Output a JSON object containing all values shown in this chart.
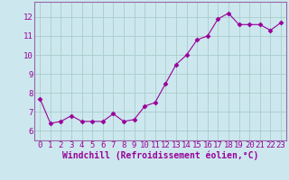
{
  "x": [
    0,
    1,
    2,
    3,
    4,
    5,
    6,
    7,
    8,
    9,
    10,
    11,
    12,
    13,
    14,
    15,
    16,
    17,
    18,
    19,
    20,
    21,
    22,
    23
  ],
  "y": [
    7.7,
    6.4,
    6.5,
    6.8,
    6.5,
    6.5,
    6.5,
    6.9,
    6.5,
    6.6,
    7.3,
    7.5,
    8.5,
    9.5,
    10.0,
    10.8,
    11.0,
    11.9,
    12.2,
    11.6,
    11.6,
    11.6,
    11.3,
    11.7
  ],
  "line_color": "#990099",
  "marker": "D",
  "marker_size": 2.5,
  "bg_color": "#cce8ee",
  "grid_color": "#aacccc",
  "xlabel": "Windchill (Refroidissement éolien,°C)",
  "xlabel_fontsize": 7,
  "tick_fontsize": 6.5,
  "ylim": [
    5.5,
    12.8
  ],
  "xlim": [
    -0.5,
    23.5
  ],
  "yticks": [
    6,
    7,
    8,
    9,
    10,
    11,
    12
  ],
  "xticks": [
    0,
    1,
    2,
    3,
    4,
    5,
    6,
    7,
    8,
    9,
    10,
    11,
    12,
    13,
    14,
    15,
    16,
    17,
    18,
    19,
    20,
    21,
    22,
    23
  ],
  "spine_color": "#9966aa"
}
